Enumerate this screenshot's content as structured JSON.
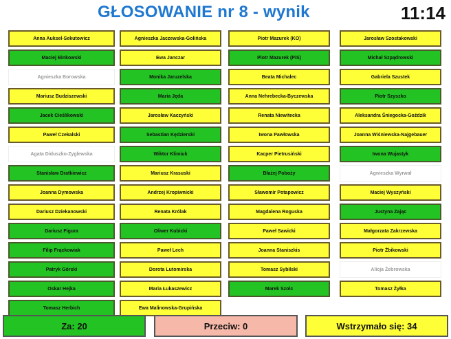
{
  "header": {
    "title": "GŁOSOWANIE nr 8 - wynik",
    "time": "11:14"
  },
  "status_colors": {
    "za": "#22c322",
    "przeciw": "#f6b8a8",
    "wstrz": "#ffff38",
    "absent": "#ffffff"
  },
  "columns": [
    [
      {
        "name": "Anna Auksel-Sekutowicz",
        "vote": "wstrz"
      },
      {
        "name": "Maciej Binkowski",
        "vote": "za"
      },
      {
        "name": "Agnieszka Borowska",
        "vote": "absent"
      },
      {
        "name": "Mariusz Budziszewski",
        "vote": "wstrz"
      },
      {
        "name": "Jacek Cieślikowski",
        "vote": "za"
      },
      {
        "name": "Paweł Czekalski",
        "vote": "wstrz"
      },
      {
        "name": "Agata Diduszko-Zyglewska",
        "vote": "absent"
      },
      {
        "name": "Stanisław Dratkiewicz",
        "vote": "za"
      },
      {
        "name": "Joanna Dymowska",
        "vote": "wstrz"
      },
      {
        "name": "Dariusz Dziekanowski",
        "vote": "wstrz"
      },
      {
        "name": "Dariusz Figura",
        "vote": "za"
      },
      {
        "name": "Filip Frąckowiak",
        "vote": "za"
      },
      {
        "name": "Patryk Górski",
        "vote": "za"
      },
      {
        "name": "Oskar Hejka",
        "vote": "za"
      },
      {
        "name": "Tomasz Herbich",
        "vote": "za"
      }
    ],
    [
      {
        "name": "Agnieszka Jaczewska-Golińska",
        "vote": "wstrz"
      },
      {
        "name": "Ewa Janczar",
        "vote": "wstrz"
      },
      {
        "name": "Monika Jaruzelska",
        "vote": "za"
      },
      {
        "name": "Maria Jęda",
        "vote": "za"
      },
      {
        "name": "Jarosław Kaczyński",
        "vote": "wstrz"
      },
      {
        "name": "Sebastian Kędzierski",
        "vote": "za"
      },
      {
        "name": "Wiktor Klimiuk",
        "vote": "za"
      },
      {
        "name": "Mariusz Krasuski",
        "vote": "wstrz"
      },
      {
        "name": "Andrzej Kropiwnicki",
        "vote": "wstrz"
      },
      {
        "name": "Renata Królak",
        "vote": "wstrz"
      },
      {
        "name": "Oliwer Kubicki",
        "vote": "za"
      },
      {
        "name": "Paweł Lech",
        "vote": "wstrz"
      },
      {
        "name": "Dorota Lutomirska",
        "vote": "wstrz"
      },
      {
        "name": "Maria Łukaszewicz",
        "vote": "wstrz"
      },
      {
        "name": "Ewa Malinowska-Grupińska",
        "vote": "wstrz"
      }
    ],
    [
      {
        "name": "Piotr Mazurek (KO)",
        "vote": "wstrz"
      },
      {
        "name": "Piotr Mazurek (PiS)",
        "vote": "za"
      },
      {
        "name": "Beata Michalec",
        "vote": "wstrz"
      },
      {
        "name": "Anna Nehrebecka-Byczewska",
        "vote": "wstrz"
      },
      {
        "name": "Renata Niewitecka",
        "vote": "wstrz"
      },
      {
        "name": "Iwona Pawłowska",
        "vote": "wstrz"
      },
      {
        "name": "Kacper Pietrusiński",
        "vote": "wstrz"
      },
      {
        "name": "Błażej Poboży",
        "vote": "za"
      },
      {
        "name": "Sławomir Potapowicz",
        "vote": "wstrz"
      },
      {
        "name": "Magdalena Roguska",
        "vote": "wstrz"
      },
      {
        "name": "Paweł Sawicki",
        "vote": "wstrz"
      },
      {
        "name": "Joanna Staniszkis",
        "vote": "wstrz"
      },
      {
        "name": "Tomasz Sybilski",
        "vote": "wstrz"
      },
      {
        "name": "Marek Szolc",
        "vote": "za"
      }
    ],
    [
      {
        "name": "Jarosław Szostakowski",
        "vote": "wstrz"
      },
      {
        "name": "Michał Szpądrowski",
        "vote": "za"
      },
      {
        "name": "Gabriela Szustek",
        "vote": "wstrz"
      },
      {
        "name": "Piotr Szyszko",
        "vote": "za"
      },
      {
        "name": "Aleksandra Śniegocka-Goździk",
        "vote": "wstrz"
      },
      {
        "name": "Joanna Wiśniewska-Najgebauer",
        "vote": "wstrz"
      },
      {
        "name": "Iwona Wujastyk",
        "vote": "za"
      },
      {
        "name": "Agnieszka Wyrwał",
        "vote": "absent"
      },
      {
        "name": "Maciej Wyszyński",
        "vote": "wstrz"
      },
      {
        "name": "Justyna Zając",
        "vote": "za"
      },
      {
        "name": "Małgorzata Zakrzewska",
        "vote": "wstrz"
      },
      {
        "name": "Piotr Żbikowski",
        "vote": "wstrz"
      },
      {
        "name": "Alicja Żebrowska",
        "vote": "absent"
      },
      {
        "name": "Tomasz Żyłka",
        "vote": "wstrz"
      }
    ]
  ],
  "summary": {
    "za": "Za: 20",
    "przeciw": "Przeciw: 0",
    "wstrzymalo": "Wstrzymało się: 34"
  }
}
